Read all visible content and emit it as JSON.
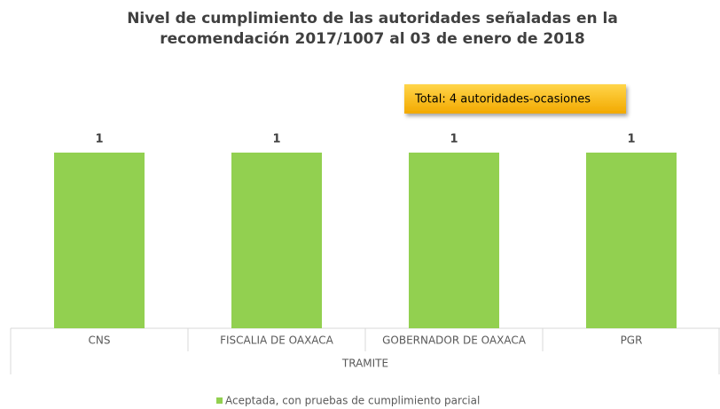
{
  "chart_data": {
    "type": "bar",
    "title": [
      "Nivel de cumplimiento de las autoridades señaladas en la",
      "recomendación 2017/1007 al 03 de enero de 2018"
    ],
    "annotation": "Total: 4 autoridades-ocasiones",
    "categories": [
      "CNS",
      "FISCALIA DE OAXACA",
      "GOBERNADOR DE OAXACA",
      "PGR"
    ],
    "category_group": "TRAMITE",
    "series": [
      {
        "name": "Aceptada, con pruebas de cumplimiento parcial",
        "color": "#92d050",
        "values": [
          1,
          1,
          1,
          1
        ]
      }
    ]
  }
}
